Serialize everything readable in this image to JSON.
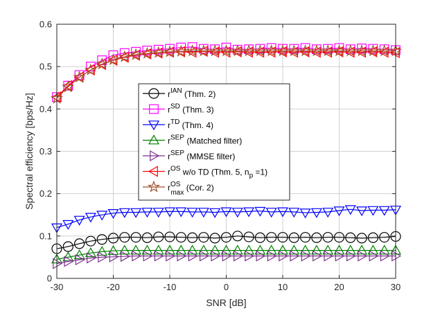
{
  "chart_data": {
    "type": "line",
    "xlabel": "SNR [dB]",
    "ylabel": "Spectral efficiency [bps/Hz]",
    "xlim": [
      -30,
      30
    ],
    "ylim": [
      0,
      0.6
    ],
    "grid": true,
    "legend_position": "center",
    "x_ticks": [
      "-30",
      "-20",
      "-10",
      "0",
      "10",
      "20",
      "30"
    ],
    "y_ticks": [
      "0",
      "0.1",
      "0.2",
      "0.3",
      "0.4",
      "0.5",
      "0.6"
    ],
    "x": [
      -30,
      -28,
      -26,
      -24,
      -22,
      -20,
      -18,
      -16,
      -14,
      -12,
      -10,
      -8,
      -6,
      -4,
      -2,
      0,
      2,
      4,
      6,
      8,
      10,
      12,
      14,
      16,
      18,
      20,
      22,
      24,
      26,
      28,
      30
    ],
    "series": [
      {
        "name": "r_IAN",
        "legend_base": "r",
        "legend_sup": "IAN",
        "legend_rest": " (Thm. 2)",
        "color": "#000000",
        "marker": "circle",
        "values": [
          0.07,
          0.075,
          0.082,
          0.088,
          0.092,
          0.095,
          0.097,
          0.097,
          0.096,
          0.098,
          0.098,
          0.097,
          0.096,
          0.097,
          0.095,
          0.097,
          0.1,
          0.098,
          0.096,
          0.097,
          0.097,
          0.096,
          0.097,
          0.096,
          0.097,
          0.097,
          0.096,
          0.095,
          0.096,
          0.097,
          0.099
        ]
      },
      {
        "name": "r_SD",
        "legend_base": "r",
        "legend_sup": "SD",
        "legend_rest": " (Thm. 3)",
        "color": "#ff00ff",
        "marker": "square",
        "values": [
          0.428,
          0.455,
          0.48,
          0.5,
          0.515,
          0.527,
          0.532,
          0.535,
          0.538,
          0.54,
          0.542,
          0.545,
          0.546,
          0.542,
          0.541,
          0.545,
          0.54,
          0.541,
          0.542,
          0.544,
          0.542,
          0.542,
          0.544,
          0.541,
          0.542,
          0.544,
          0.541,
          0.543,
          0.542,
          0.541,
          0.539
        ]
      },
      {
        "name": "r_TD",
        "legend_base": "r",
        "legend_sup": "TD",
        "legend_rest": " (Thm. 4)",
        "color": "#0000ff",
        "marker": "triangle-down",
        "values": [
          0.12,
          0.128,
          0.138,
          0.145,
          0.15,
          0.154,
          0.156,
          0.156,
          0.157,
          0.157,
          0.158,
          0.158,
          0.157,
          0.157,
          0.156,
          0.158,
          0.157,
          0.158,
          0.159,
          0.157,
          0.158,
          0.157,
          0.155,
          0.156,
          0.157,
          0.16,
          0.163,
          0.16,
          0.161,
          0.161,
          0.162
        ]
      },
      {
        "name": "r_SEP_matched",
        "legend_base": "r",
        "legend_sup": "SEP",
        "legend_rest": " (Matched filter)",
        "color": "#008000",
        "marker": "triangle-up",
        "values": [
          0.045,
          0.05,
          0.055,
          0.06,
          0.063,
          0.065,
          0.066,
          0.066,
          0.066,
          0.066,
          0.066,
          0.066,
          0.066,
          0.066,
          0.066,
          0.066,
          0.066,
          0.066,
          0.066,
          0.066,
          0.066,
          0.066,
          0.066,
          0.066,
          0.066,
          0.066,
          0.066,
          0.066,
          0.066,
          0.066,
          0.066
        ]
      },
      {
        "name": "r_SEP_MMSE",
        "legend_base": "r",
        "legend_sup": "SEP",
        "legend_rest": " (MMSE filter)",
        "color": "#7e2f8e",
        "marker": "triangle-right",
        "values": [
          0.035,
          0.04,
          0.044,
          0.048,
          0.05,
          0.051,
          0.052,
          0.053,
          0.053,
          0.053,
          0.053,
          0.053,
          0.053,
          0.053,
          0.053,
          0.053,
          0.053,
          0.053,
          0.053,
          0.053,
          0.053,
          0.053,
          0.053,
          0.053,
          0.053,
          0.053,
          0.053,
          0.053,
          0.053,
          0.053,
          0.053
        ]
      },
      {
        "name": "r_OS_woTD",
        "legend_base": "r",
        "legend_sup": "OS",
        "legend_rest": " w/o TD (Thm. 5, n",
        "legend_sub2": "p",
        "legend_rest2": " =1)",
        "color": "#ff0000",
        "marker": "triangle-left",
        "values": [
          0.428,
          0.455,
          0.475,
          0.492,
          0.505,
          0.515,
          0.522,
          0.527,
          0.53,
          0.532,
          0.534,
          0.535,
          0.534,
          0.536,
          0.534,
          0.534,
          0.535,
          0.534,
          0.534,
          0.534,
          0.535,
          0.534,
          0.535,
          0.534,
          0.534,
          0.535,
          0.534,
          0.534,
          0.535,
          0.534,
          0.533
        ]
      },
      {
        "name": "r_max_OS",
        "legend_base": "r",
        "legend_sup": "OS",
        "legend_sub": "max",
        "legend_rest": " (Cor. 2)",
        "color": "#a0522d",
        "marker": "star",
        "values": [
          0.425,
          0.452,
          0.475,
          0.492,
          0.506,
          0.516,
          0.523,
          0.528,
          0.531,
          0.533,
          0.535,
          0.536,
          0.537,
          0.537,
          0.537,
          0.537,
          0.537,
          0.537,
          0.537,
          0.537,
          0.537,
          0.537,
          0.537,
          0.537,
          0.537,
          0.537,
          0.537,
          0.537,
          0.537,
          0.537,
          0.537
        ]
      }
    ]
  }
}
